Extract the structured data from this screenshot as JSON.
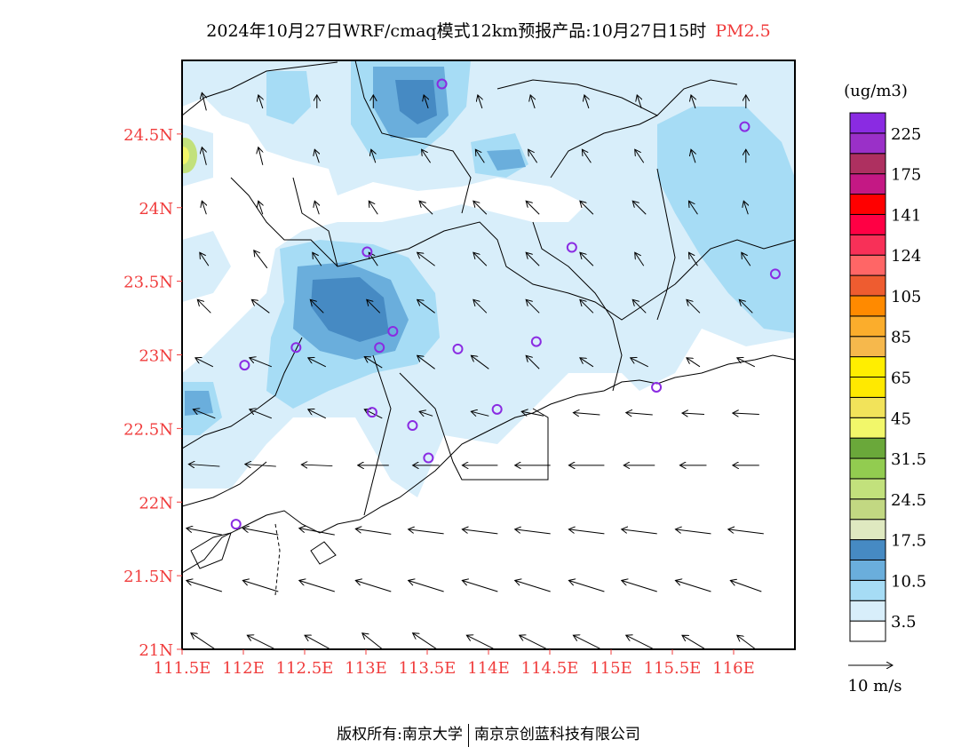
{
  "title": {
    "main": "2024年10月27日WRF/cmaq模式12km预报产品:10月27日15时",
    "variable": "PM2.5"
  },
  "footer": {
    "left": "版权所有:南京大学",
    "right": "南京京创蓝科技有限公司"
  },
  "map": {
    "lon_range": [
      111.5,
      116.5
    ],
    "lat_range": [
      21.0,
      25.0
    ],
    "lon_ticks": [
      "111.5E",
      "112E",
      "112.5E",
      "113E",
      "113.5E",
      "114E",
      "114.5E",
      "115E",
      "115.5E",
      "116E"
    ],
    "lon_tick_values": [
      111.5,
      112,
      112.5,
      113,
      113.5,
      114,
      114.5,
      115,
      115.5,
      116
    ],
    "lat_ticks": [
      "21N",
      "21.5N",
      "22N",
      "22.5N",
      "23N",
      "23.5N",
      "24N",
      "24.5N"
    ],
    "lat_tick_values": [
      21,
      21.5,
      22,
      22.5,
      23,
      23.5,
      24,
      24.5
    ],
    "stations": [
      [
        113.62,
        24.84
      ],
      [
        116.09,
        24.55
      ],
      [
        113.01,
        23.7
      ],
      [
        114.68,
        23.73
      ],
      [
        116.34,
        23.55
      ],
      [
        113.22,
        23.16
      ],
      [
        112.43,
        23.05
      ],
      [
        113.11,
        23.05
      ],
      [
        113.75,
        23.04
      ],
      [
        114.39,
        23.09
      ],
      [
        112.01,
        22.93
      ],
      [
        115.37,
        22.78
      ],
      [
        113.05,
        22.61
      ],
      [
        114.07,
        22.63
      ],
      [
        113.38,
        22.52
      ],
      [
        113.51,
        22.3
      ],
      [
        111.94,
        21.85
      ]
    ],
    "station_color": "#8a2be2",
    "wind": {
      "lons": [
        111.68,
        112.14,
        112.6,
        113.06,
        113.49,
        113.93,
        114.36,
        114.8,
        115.23,
        115.67,
        116.1
      ],
      "lats": [
        21.05,
        21.43,
        21.8,
        22.25,
        22.6,
        22.95,
        23.33,
        23.65,
        24.0,
        24.35,
        24.72
      ],
      "u": [
        [
          -6,
          -6,
          -5.5,
          -5,
          -6,
          -6,
          -6,
          -6,
          -6,
          -5,
          -4
        ],
        [
          -8,
          -8,
          -8,
          -8,
          -8,
          -8,
          -8,
          -8,
          -8,
          -8,
          -7
        ],
        [
          -8,
          -8,
          -8,
          -8,
          -8,
          -8,
          -8,
          -8,
          -8,
          -8,
          -8
        ],
        [
          -7,
          -7,
          -7,
          -7,
          -6,
          -8,
          -8,
          -8,
          -7,
          -6,
          -6
        ],
        [
          -5,
          -5,
          -4,
          -4,
          -3,
          -4,
          -5,
          -6,
          -6,
          -5,
          -6
        ],
        [
          -4,
          -5,
          -4,
          -4,
          -4,
          -4,
          -3,
          -3,
          -4,
          -3,
          -4
        ],
        [
          -3,
          -4,
          -3,
          -3,
          -4,
          -3,
          -3,
          -3,
          -3,
          -3,
          -3
        ],
        [
          -2,
          -3,
          -2,
          -2,
          -4,
          -3,
          -3,
          -3,
          -2,
          -2,
          -2
        ],
        [
          -1,
          -1,
          -1,
          -2,
          -3,
          -3,
          -3,
          -3,
          -3,
          -2,
          -1
        ],
        [
          -1,
          -1,
          -1,
          -1,
          -2,
          -2,
          -2,
          -2,
          -2,
          -1,
          0
        ],
        [
          -1,
          -1,
          0,
          0,
          -1,
          -1,
          -1,
          -1,
          -1,
          -1,
          0
        ]
      ],
      "v": [
        [
          4,
          3,
          3,
          4,
          4,
          3,
          3,
          3,
          3,
          3,
          3
        ],
        [
          2.5,
          2.5,
          2.5,
          2.5,
          2.5,
          2.5,
          2.5,
          2.5,
          2.5,
          2.5,
          2.5
        ],
        [
          1.5,
          1.5,
          1.5,
          1.2,
          1,
          1,
          1,
          1,
          1,
          1,
          1
        ],
        [
          0.5,
          0.5,
          0.3,
          0,
          0,
          0,
          0,
          0,
          0,
          0,
          0
        ],
        [
          2,
          2,
          2,
          2,
          1,
          1,
          1,
          0.5,
          0.5,
          0.3,
          0.3
        ],
        [
          2,
          2,
          2,
          2.5,
          3,
          3,
          3,
          2,
          2,
          2,
          2
        ],
        [
          3,
          3,
          3,
          3,
          3,
          3,
          3,
          3,
          3,
          3,
          3
        ],
        [
          3,
          4,
          3,
          3,
          3,
          3,
          3,
          3,
          3,
          3,
          3
        ],
        [
          3,
          3,
          3,
          3,
          3,
          3,
          3,
          3,
          3,
          3,
          3
        ],
        [
          4,
          4,
          3,
          3,
          3,
          3,
          3,
          3,
          3,
          3,
          3
        ],
        [
          4,
          3,
          3,
          3,
          3,
          3,
          3,
          3,
          3,
          3,
          3
        ]
      ]
    }
  },
  "colorbar": {
    "unit": "(ug/m3)",
    "colors": [
      "#ffffff",
      "#d8eefa",
      "#a6dcf5",
      "#6aaedc",
      "#468ac3",
      "#dfe9c0",
      "#c2d882",
      "#c2e17c",
      "#92cc50",
      "#6aa83a",
      "#f2f76a",
      "#f2e35a",
      "#ffe900",
      "#ffee00",
      "#f6b84c",
      "#fbad2c",
      "#ff8a00",
      "#ee5c30",
      "#ff6666",
      "#f83058",
      "#ff0044",
      "#ff0000",
      "#c41884",
      "#ae3060",
      "#9a30c8",
      "#8a2be2"
    ],
    "labels": [
      "3.5",
      "10.5",
      "17.5",
      "24.5",
      "31.5",
      "45",
      "65",
      "85",
      "105",
      "124",
      "141",
      "175",
      "225"
    ],
    "wind_ref": "10 m/s"
  }
}
